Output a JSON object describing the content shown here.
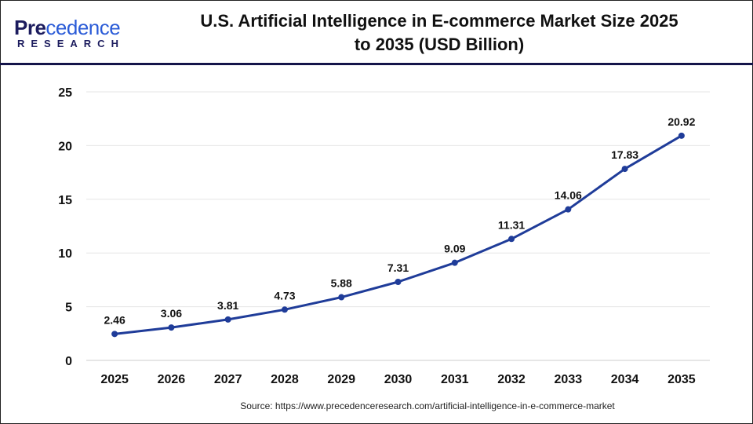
{
  "logo": {
    "text_main": "Precedence",
    "text_sub": "RESEARCH"
  },
  "title_line1": "U.S. Artificial Intelligence in E-commerce Market Size 2025",
  "title_line2": "to 2035  (USD Billion)",
  "source": "Source: https://www.precedenceresearch.com/artificial-intelligence-in-e-commerce-market",
  "colors": {
    "line": "#1f3c99",
    "header_rule": "#14144a",
    "grid": "#e6e6e6"
  },
  "chart_data": {
    "type": "line",
    "title": "U.S. Artificial Intelligence in E-commerce Market Size 2025 to 2035  (USD Billion)",
    "xlabel": "",
    "ylabel": "",
    "categories": [
      "2025",
      "2026",
      "2027",
      "2028",
      "2029",
      "2030",
      "2031",
      "2032",
      "2033",
      "2034",
      "2035"
    ],
    "values": [
      2.46,
      3.06,
      3.81,
      4.73,
      5.88,
      7.31,
      9.09,
      11.31,
      14.06,
      17.83,
      20.92
    ],
    "data_labels": [
      "2.46",
      "3.06",
      "3.81",
      "4.73",
      "5.88",
      "7.31",
      "9.09",
      "11.31",
      "14.06",
      "17.83",
      "20.92"
    ],
    "ylim": [
      0,
      25
    ],
    "yticks": [
      "0",
      "5",
      "10",
      "15",
      "20",
      "25"
    ],
    "grid": true,
    "legend": "none"
  }
}
